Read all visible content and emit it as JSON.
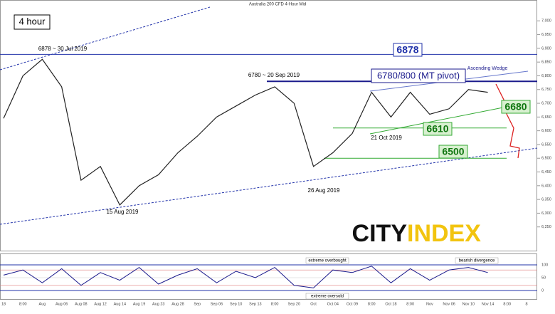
{
  "chart_data": [
    {
      "type": "line",
      "title": "Australia 200 CFD 4-Hour Mid",
      "categories": [
        "18",
        "8:00",
        "Aug",
        "Aug 06",
        "Aug 08",
        "Aug 12",
        "Aug 14",
        "Aug 19",
        "Aug 23",
        "Aug 28",
        "Sep",
        "Sep 06",
        "Sep 10",
        "Sep 13",
        "8:00",
        "Sep 20",
        "Oct",
        "Oct 04",
        "Oct 09",
        "8:00",
        "Oct 18",
        "8:00",
        "Nov",
        "Nov 06",
        "Nov 10",
        "Nov 14",
        "8:00",
        "8"
      ],
      "values": [
        6645,
        6800,
        6860,
        6760,
        6420,
        6470,
        6330,
        6400,
        6440,
        6520,
        6580,
        6650,
        6690,
        6730,
        6760,
        6700,
        6470,
        6520,
        6590,
        6740,
        6650,
        6740,
        6660,
        6680,
        6750,
        6740,
        null,
        null
      ],
      "color": "#222222",
      "ylim": [
        6200,
        7050
      ],
      "yticks": [
        {
          "value": 6250,
          "label": "6,250"
        },
        {
          "value": 6300,
          "label": "6,300"
        },
        {
          "value": 6350,
          "label": "6,350"
        },
        {
          "value": 6400,
          "label": "6,400"
        },
        {
          "value": 6450,
          "label": "6,450"
        },
        {
          "value": 6500,
          "label": "6,500"
        },
        {
          "value": 6550,
          "label": "6,550"
        },
        {
          "value": 6600,
          "label": "6,600"
        },
        {
          "value": 6650,
          "label": "6,650"
        },
        {
          "value": 6700,
          "label": "6,700"
        },
        {
          "value": 6750,
          "label": "6,750"
        },
        {
          "value": 6800,
          "label": "6,800"
        },
        {
          "value": 6850,
          "label": "6,850"
        },
        {
          "value": 6900,
          "label": "6,900"
        },
        {
          "value": 6950,
          "label": "6,950"
        },
        {
          "value": 7000,
          "label": "7,000"
        }
      ],
      "levels": [
        6878,
        6680,
        6610,
        6500
      ],
      "resistance": 6780,
      "annotations": [
        "4 hour",
        "6878 ~ 30 Jul 2019",
        "6780 ~ 20 Sep 2019",
        "6780/800 (MT pivot)",
        "Ascending Wedge",
        "21 Oct 2019",
        "26 Aug 2019",
        "15 Aug 2019"
      ],
      "logo": [
        "CITY",
        "INDEX"
      ]
    },
    {
      "type": "line",
      "values": [
        60,
        80,
        30,
        85,
        20,
        70,
        40,
        90,
        25,
        60,
        85,
        30,
        75,
        50,
        90,
        20,
        10,
        80,
        70,
        95,
        30,
        85,
        40,
        80,
        90,
        70,
        null,
        null
      ],
      "color": "#1a1a8c",
      "ylim": [
        0,
        100
      ],
      "yticks": [
        0,
        50,
        100
      ],
      "annotations": [
        "extreme overbought",
        "extreme oversold",
        "bearish divergence"
      ]
    }
  ]
}
